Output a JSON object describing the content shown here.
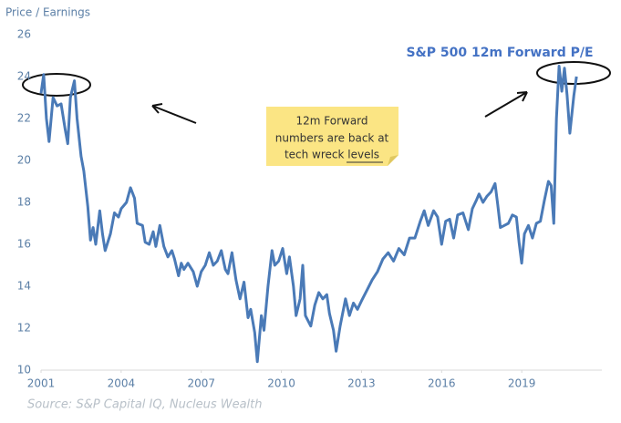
{
  "chart_data": {
    "type": "line",
    "title": "S&P 500 12m Forward P/E",
    "y_label": "Price / Earnings",
    "source": "Source: S&P Capital IQ, Nucleus Wealth",
    "note": [
      "12m Forward",
      "numbers are back at",
      "tech wreck levels"
    ],
    "color": "#4a7ab7",
    "x": [
      2001.0,
      2001.1,
      2001.2,
      2001.3,
      2001.45,
      2001.6,
      2001.75,
      2001.9,
      2002.0,
      2002.1,
      2002.25,
      2002.35,
      2002.5,
      2002.6,
      2002.75,
      2002.85,
      2002.95,
      2003.05,
      2003.2,
      2003.3,
      2003.4,
      2003.6,
      2003.75,
      2003.9,
      2004.0,
      2004.2,
      2004.35,
      2004.5,
      2004.6,
      2004.8,
      2004.9,
      2005.05,
      2005.2,
      2005.3,
      2005.45,
      2005.6,
      2005.75,
      2005.9,
      2006.0,
      2006.15,
      2006.25,
      2006.35,
      2006.5,
      2006.7,
      2006.85,
      2007.0,
      2007.15,
      2007.3,
      2007.45,
      2007.6,
      2007.75,
      2007.9,
      2008.0,
      2008.15,
      2008.3,
      2008.45,
      2008.6,
      2008.75,
      2008.85,
      2009.0,
      2009.1,
      2009.25,
      2009.35,
      2009.5,
      2009.65,
      2009.75,
      2009.9,
      2010.05,
      2010.2,
      2010.3,
      2010.45,
      2010.55,
      2010.7,
      2010.8,
      2010.9,
      2011.1,
      2011.25,
      2011.4,
      2011.55,
      2011.7,
      2011.8,
      2011.95,
      2012.05,
      2012.2,
      2012.4,
      2012.55,
      2012.7,
      2012.85,
      2013.0,
      2013.2,
      2013.4,
      2013.6,
      2013.8,
      2014.0,
      2014.2,
      2014.4,
      2014.6,
      2014.8,
      2015.0,
      2015.2,
      2015.35,
      2015.5,
      2015.7,
      2015.85,
      2016.0,
      2016.15,
      2016.3,
      2016.45,
      2016.6,
      2016.8,
      2017.0,
      2017.15,
      2017.3,
      2017.4,
      2017.55,
      2017.7,
      2017.85,
      2018.0,
      2018.1,
      2018.2,
      2018.35,
      2018.5,
      2018.65,
      2018.8,
      2018.9,
      2019.0,
      2019.1,
      2019.25,
      2019.4,
      2019.55,
      2019.7,
      2019.85,
      2020.0,
      2020.1,
      2020.2,
      2020.3,
      2020.4,
      2020.5,
      2020.6,
      2020.7,
      2020.8,
      2020.95,
      2021.05
    ],
    "values": [
      23.2,
      24.1,
      22.0,
      20.9,
      23.0,
      22.6,
      22.7,
      21.5,
      20.8,
      23.0,
      23.8,
      22.0,
      20.2,
      19.5,
      17.8,
      16.2,
      16.8,
      16.0,
      17.6,
      16.5,
      15.7,
      16.5,
      17.5,
      17.3,
      17.7,
      18.0,
      18.7,
      18.2,
      17.0,
      16.9,
      16.1,
      16.0,
      16.6,
      15.9,
      16.9,
      15.9,
      15.4,
      15.7,
      15.3,
      14.5,
      15.1,
      14.8,
      15.1,
      14.7,
      14.0,
      14.7,
      15.0,
      15.6,
      15.0,
      15.2,
      15.7,
      14.8,
      14.6,
      15.6,
      14.3,
      13.4,
      14.2,
      12.5,
      12.9,
      11.8,
      10.4,
      12.6,
      11.9,
      14.0,
      15.7,
      15.0,
      15.2,
      15.8,
      14.6,
      15.4,
      14.0,
      12.6,
      13.4,
      15.0,
      12.6,
      12.1,
      13.1,
      13.7,
      13.4,
      13.6,
      12.7,
      11.9,
      10.9,
      12.1,
      13.4,
      12.6,
      13.2,
      12.9,
      13.3,
      13.8,
      14.3,
      14.7,
      15.3,
      15.6,
      15.2,
      15.8,
      15.5,
      16.3,
      16.3,
      17.1,
      17.6,
      16.9,
      17.6,
      17.3,
      16.0,
      17.1,
      17.2,
      16.3,
      17.4,
      17.5,
      16.7,
      17.7,
      18.1,
      18.4,
      18.0,
      18.3,
      18.5,
      18.9,
      17.9,
      16.8,
      16.9,
      17.0,
      17.4,
      17.3,
      16.1,
      15.1,
      16.5,
      16.9,
      16.3,
      17.0,
      17.1,
      18.1,
      19.0,
      18.8,
      17.0,
      22.0,
      24.5,
      23.3,
      24.4,
      23.1,
      21.3,
      23.1,
      24.0
    ],
    "xlim": [
      2001,
      2022
    ],
    "xticks": [
      2001,
      2004,
      2007,
      2010,
      2013,
      2016,
      2019
    ],
    "ylim": [
      10,
      26
    ],
    "yticks": [
      10,
      12,
      14,
      16,
      18,
      20,
      22,
      24,
      26
    ],
    "grid": false
  }
}
